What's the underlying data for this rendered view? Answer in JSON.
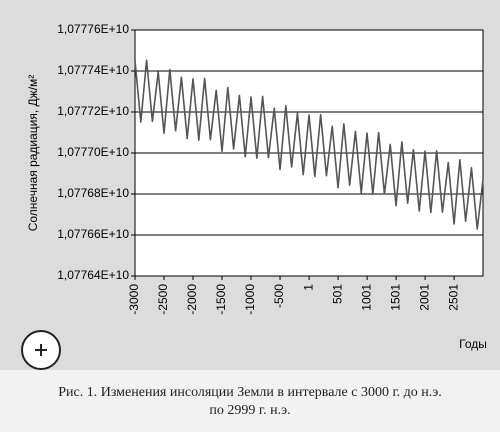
{
  "chart_data": {
    "type": "line",
    "y_label": "Солнечная радиация, Дж/м²",
    "x_label": "Годы",
    "caption": [
      "Рис. 1. Изменения инсоляции Земли в интервале с 3000 г. до н.э.",
      "по 2999 г. н.э."
    ],
    "x": [
      -3000,
      -2900,
      -2800,
      -2700,
      -2600,
      -2500,
      -2400,
      -2300,
      -2200,
      -2100,
      -2000,
      -1900,
      -1800,
      -1700,
      -1600,
      -1500,
      -1400,
      -1300,
      -1200,
      -1100,
      -1000,
      -900,
      -800,
      -700,
      -600,
      -500,
      -400,
      -300,
      -200,
      -100,
      0,
      100,
      200,
      300,
      400,
      500,
      600,
      700,
      800,
      900,
      1000,
      1100,
      1200,
      1300,
      1400,
      1500,
      1600,
      1700,
      1800,
      1900,
      2000,
      2100,
      2200,
      2300,
      2400,
      2500,
      2600,
      2700,
      2800,
      2900,
      2999
    ],
    "series": [
      {
        "color": "#555555",
        "values": [
          10777450000,
          10777151000,
          10777452000,
          10777154000,
          10777395000,
          10777096000,
          10777407000,
          10777108000,
          10777369000,
          10777071000,
          10777362000,
          10777063000,
          10777364000,
          10777065000,
          10777306000,
          10777008000,
          10777319000,
          10777020000,
          10777281000,
          10776982000,
          10777273000,
          10776975000,
          10777276000,
          10776977000,
          10777218000,
          10776919000,
          10777230000,
          10776932000,
          10777193000,
          10776894000,
          10777185000,
          10776886000,
          10777187000,
          10776889000,
          10777130000,
          10776831000,
          10777142000,
          10776843000,
          10777105000,
          10776806000,
          10777097000,
          10776798000,
          10777099000,
          10776800000,
          10777042000,
          10776743000,
          10777054000,
          10776755000,
          10777016000,
          10776717000,
          10777009000,
          10776710000,
          10777011000,
          10776712000,
          10776953000,
          10776654000,
          10776966000,
          10776667000,
          10776928000,
          10776629000,
          10776870000
        ]
      }
    ],
    "xlim": [
      -3000,
      2999
    ],
    "xticks": [
      -3000,
      -2500,
      -2000,
      -1500,
      -1000,
      -500,
      1,
      501,
      1001,
      1501,
      2001,
      2501
    ],
    "ylim": [
      10776400000,
      10777600000
    ],
    "yticks": [
      {
        "value": 10776400000,
        "label": "1,07764E+10"
      },
      {
        "value": 10776600000,
        "label": "1,07766E+10"
      },
      {
        "value": 10776800000,
        "label": "1,07768E+10"
      },
      {
        "value": 10777000000,
        "label": "1,07770E+10"
      },
      {
        "value": 10777200000,
        "label": "1,07772E+10"
      },
      {
        "value": 10777400000,
        "label": "1,07774E+10"
      },
      {
        "value": 10777600000,
        "label": "1,07776E+10"
      }
    ],
    "grid": true
  }
}
